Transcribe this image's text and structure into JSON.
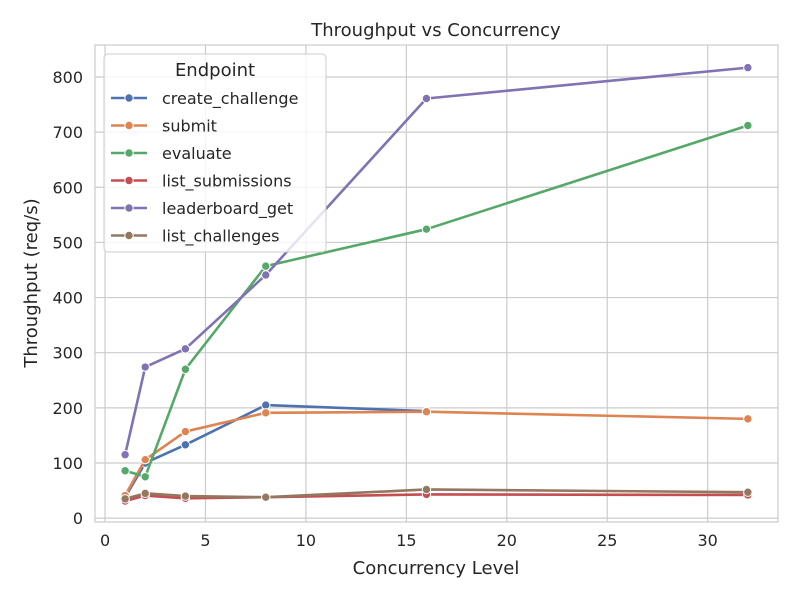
{
  "chart_data": {
    "type": "line",
    "title": "Throughput vs Concurrency",
    "xlabel": "Concurrency Level",
    "ylabel": "Throughput (req/s)",
    "xlim": [
      -0.5,
      33.5
    ],
    "ylim": [
      -7,
      858
    ],
    "xticks": [
      0,
      5,
      10,
      15,
      20,
      25,
      30
    ],
    "yticks": [
      0,
      100,
      200,
      300,
      400,
      500,
      600,
      700,
      800
    ],
    "grid": true,
    "legend": {
      "title": "Endpoint",
      "placement": "top-left"
    },
    "x": [
      1,
      2,
      4,
      8,
      16,
      32
    ],
    "series": [
      {
        "name": "create_challenge",
        "color": "#4c72b0",
        "values": [
          38,
          100,
          133,
          205,
          194,
          null
        ]
      },
      {
        "name": "submit",
        "color": "#dd8452",
        "values": [
          41,
          106,
          157,
          191,
          193,
          180
        ]
      },
      {
        "name": "evaluate",
        "color": "#55a868",
        "values": [
          86,
          75,
          270,
          457,
          524,
          712
        ]
      },
      {
        "name": "list_submissions",
        "color": "#c44e52",
        "values": [
          31,
          41,
          36,
          38,
          43,
          42
        ]
      },
      {
        "name": "leaderboard_get",
        "color": "#8172b3",
        "values": [
          115,
          274,
          307,
          441,
          761,
          817
        ]
      },
      {
        "name": "list_challenges",
        "color": "#937860",
        "values": [
          35,
          45,
          40,
          38,
          52,
          47
        ]
      }
    ]
  }
}
